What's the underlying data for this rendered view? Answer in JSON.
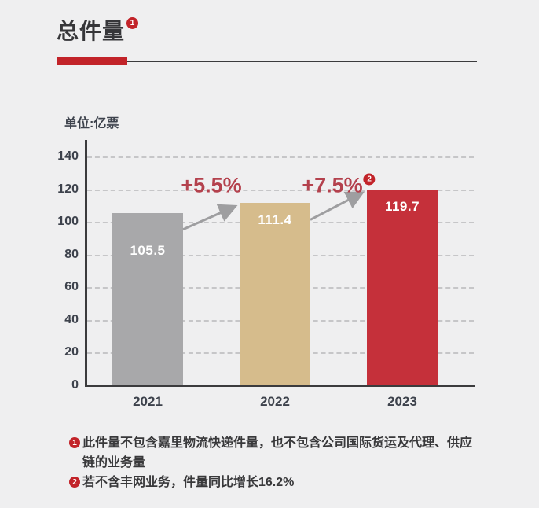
{
  "header": {
    "title": "总件量",
    "title_footnote_ref": "1"
  },
  "chart_data": {
    "type": "bar",
    "title": "总件量",
    "unit_label": "单位:亿票",
    "xlabel": "",
    "ylabel": "单位:亿票",
    "categories": [
      "2021",
      "2022",
      "2023"
    ],
    "values": [
      105.5,
      111.4,
      119.7
    ],
    "value_labels": [
      "105.5",
      "111.4",
      "119.7"
    ],
    "bar_colors": [
      "#a8a8aa",
      "#d6bc8c",
      "#c5303a"
    ],
    "ylim": [
      0,
      140
    ],
    "yticks": [
      0,
      20,
      40,
      60,
      80,
      100,
      120,
      140
    ],
    "grid": "horizontal-dashed",
    "legend": "none",
    "annotations": [
      {
        "label": "+5.5%",
        "footnote_ref": ""
      },
      {
        "label": "+7.5%",
        "footnote_ref": "2"
      }
    ]
  },
  "footnotes": [
    {
      "ref": "1",
      "text": "此件量不包含嘉里物流快递件量，也不包含公司国际货运及代理、供应链的业务量"
    },
    {
      "ref": "2",
      "text": "若不含丰网业务，件量同比增长16.2%"
    }
  ],
  "colors": {
    "background": "#efeff0",
    "accent_red": "#c22329",
    "percent_red": "#b4414d",
    "bar_gray": "#a8a8aa",
    "bar_tan": "#d6bc8c",
    "bar_red": "#c5303a",
    "arrow_gray": "#9e9ea0",
    "axis_dark": "#3b3b3d",
    "text_dark": "#38383a"
  }
}
